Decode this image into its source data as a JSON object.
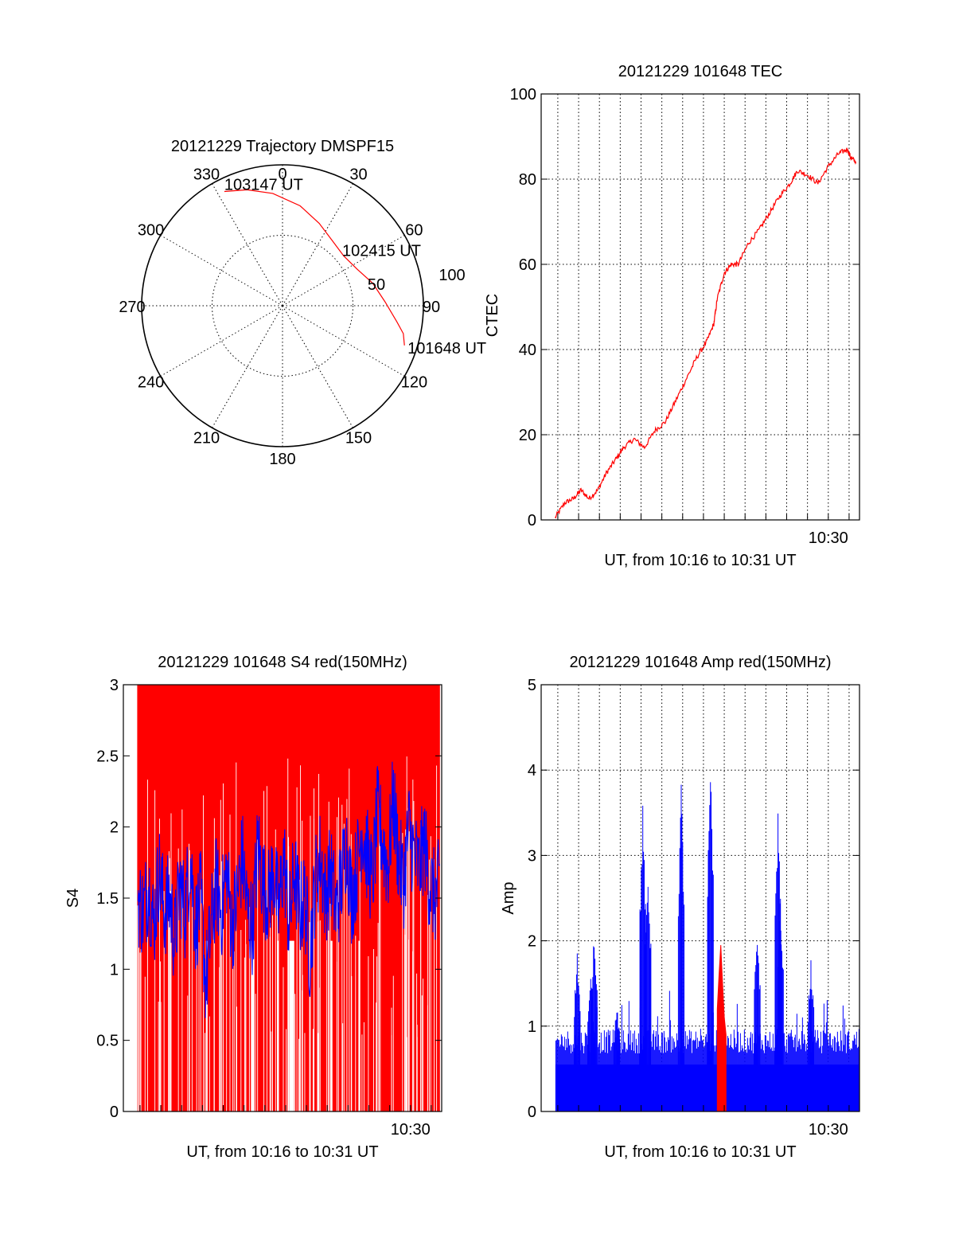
{
  "colors": {
    "red": "#ff0000",
    "blue": "#0000ff",
    "axis": "#000000",
    "grid": "#000000",
    "background": "#ffffff"
  },
  "chart_data": [
    {
      "id": "trajectory",
      "type": "polar",
      "title": "20121229 Trajectory DMSPF15",
      "angle_labels": [
        "0",
        "30",
        "60",
        "90",
        "120",
        "150",
        "180",
        "210",
        "240",
        "270",
        "300",
        "330"
      ],
      "radial_labels": [
        "50",
        "100"
      ],
      "radial_range": [
        0,
        100
      ],
      "grid": true,
      "series": [
        {
          "color": "#ff0000",
          "points": [
            {
              "azimuth": 108,
              "zenith": 91
            },
            {
              "azimuth": 103,
              "zenith": 88
            },
            {
              "azimuth": 98,
              "zenith": 82
            },
            {
              "azimuth": 88,
              "zenith": 73
            },
            {
              "azimuth": 76,
              "zenith": 66
            },
            {
              "azimuth": 64,
              "zenith": 59
            },
            {
              "azimuth": 51,
              "zenith": 56
            },
            {
              "azimuth": 38,
              "zenith": 58
            },
            {
              "azimuth": 24,
              "zenith": 64
            },
            {
              "azimuth": 10,
              "zenith": 72
            },
            {
              "azimuth": -5,
              "zenith": 80
            },
            {
              "azimuth": -17,
              "zenith": 86
            },
            {
              "azimuth": -27,
              "zenith": 91
            }
          ]
        }
      ],
      "annotations": [
        {
          "text": "101648 UT",
          "azimuth": 108,
          "zenith": 91
        },
        {
          "text": "102415 UT",
          "azimuth": 51,
          "zenith": 56
        },
        {
          "text": "103147 UT",
          "azimuth": -27,
          "zenith": 91
        }
      ]
    },
    {
      "id": "tec",
      "type": "line",
      "title": "20121229 101648 TEC",
      "xlabel": "UT, from 10:16 to 10:31 UT",
      "ylabel": "CTEC",
      "xlim": [
        10.27,
        10.525
      ],
      "ylim": [
        0,
        100
      ],
      "yticks": [
        0,
        20,
        40,
        60,
        80,
        100
      ],
      "xtick_labels": [
        {
          "x": 10.5,
          "label": "10:30"
        }
      ],
      "grid": true,
      "series": [
        {
          "color": "#ff0000",
          "x": [
            10.2811,
            10.2889,
            10.2958,
            10.3019,
            10.3083,
            10.3153,
            10.3222,
            10.3292,
            10.3361,
            10.3444,
            10.3528,
            10.3611,
            10.3694,
            10.3778,
            10.3861,
            10.3944,
            10.4028,
            10.4083,
            10.4111,
            10.4167,
            10.4222,
            10.4278,
            10.4361,
            10.4444,
            10.4528,
            10.4611,
            10.4694,
            10.4753,
            10.4833,
            10.4917,
            10.5,
            10.5083,
            10.5153,
            10.5181,
            10.5222
          ],
          "y": [
            0.5,
            4,
            5,
            7,
            5,
            7,
            11,
            14,
            17,
            19,
            17,
            21,
            23,
            28,
            33,
            38,
            42,
            46,
            52,
            58,
            60,
            60,
            65,
            68,
            72,
            76,
            79,
            82,
            81,
            79,
            83,
            86,
            87,
            85,
            84
          ]
        }
      ]
    },
    {
      "id": "s4",
      "type": "line",
      "title": "20121229 101648 S4 red(150MHz)",
      "xlabel": "UT, from 10:16 to 10:31 UT",
      "ylabel": "S4",
      "xlim": [
        10.27,
        10.525
      ],
      "ylim": [
        0,
        3
      ],
      "yticks": [
        0,
        0.5,
        1,
        1.5,
        2,
        2.5,
        3
      ],
      "ytick_labels": [
        "0",
        "0.5",
        "1",
        "1.5",
        "2",
        "2.5",
        "3"
      ],
      "xtick_labels": [
        {
          "x": 10.5,
          "label": "10:30"
        }
      ],
      "grid": false,
      "series": [
        {
          "name": "red",
          "color": "#ff0000",
          "style": "fill-to-top",
          "x_range": [
            10.2811,
            10.5236
          ],
          "gaps": [
            [
              10.3361,
              10.3375
            ],
            [
              10.3722,
              10.375
            ],
            [
              10.3931,
              10.3944
            ],
            [
              10.4028,
              10.4069
            ],
            [
              10.4361,
              10.4375
            ],
            [
              10.4583,
              10.4597
            ]
          ]
        },
        {
          "name": "blue",
          "color": "#0000ff",
          "x": [
            10.2817,
            10.2861,
            10.2903,
            10.2944,
            10.2986,
            10.3028,
            10.3069,
            10.3111,
            10.3153,
            10.3194,
            10.3236,
            10.3278,
            10.3319,
            10.3361,
            10.3403,
            10.3444,
            10.3486,
            10.3528,
            10.3569,
            10.3611,
            10.3653,
            10.3694,
            10.3736,
            10.3778,
            10.3819,
            10.3861,
            10.3903,
            10.3944,
            10.3986,
            10.4028,
            10.4069,
            10.4111,
            10.4153,
            10.4194,
            10.4236,
            10.4278,
            10.4319,
            10.4361,
            10.4403,
            10.4444,
            10.4486,
            10.4528,
            10.4569,
            10.4611,
            10.4653,
            10.4694,
            10.4736,
            10.4778,
            10.4819,
            10.4861,
            10.4903,
            10.4944,
            10.4986,
            10.5028,
            10.5069,
            10.5111,
            10.5153,
            10.5194,
            10.5236
          ],
          "y": [
            1.5,
            1.4,
            1.6,
            1.3,
            1.7,
            1.4,
            1.5,
            1.2,
            1.6,
            1.4,
            1.8,
            1.3,
            1.5,
            0.9,
            1.3,
            1.6,
            1.4,
            1.7,
            1.3,
            1.5,
            1.8,
            1.4,
            1.3,
            1.9,
            1.6,
            1.5,
            1.7,
            1.4,
            1.8,
            1.3,
            1.7,
            1.4,
            1.5,
            1.1,
            1.6,
            1.8,
            1.5,
            1.7,
            1.4,
            1.6,
            1.9,
            1.5,
            1.7,
            2.0,
            1.8,
            1.6,
            2.1,
            1.9,
            1.7,
            2.2,
            1.8,
            1.6,
            2.0,
            1.8,
            1.7,
            1.9,
            1.6,
            1.5,
            1.6
          ]
        }
      ]
    },
    {
      "id": "amp",
      "type": "line",
      "title": "20121229 101648 Amp red(150MHz)",
      "xlabel": "UT, from 10:16 to 10:31 UT",
      "ylabel": "Amp",
      "xlim": [
        10.27,
        10.525
      ],
      "ylim": [
        0,
        5
      ],
      "yticks": [
        0,
        1,
        2,
        3,
        4,
        5
      ],
      "xtick_labels": [
        {
          "x": 10.5,
          "label": "10:30"
        }
      ],
      "grid": true,
      "series": [
        {
          "name": "blue",
          "color": "#0000ff",
          "x_range": [
            10.2817,
            10.525
          ],
          "baseline": 0.8,
          "peaks": [
            {
              "x": 10.2989,
              "y": 1.9
            },
            {
              "x": 10.3097,
              "y": 1.6
            },
            {
              "x": 10.3125,
              "y": 2.2
            },
            {
              "x": 10.3514,
              "y": 3.6
            },
            {
              "x": 10.3556,
              "y": 2.9
            },
            {
              "x": 10.3822,
              "y": 3.9
            },
            {
              "x": 10.4056,
              "y": 4.1
            },
            {
              "x": 10.4431,
              "y": 2.2
            },
            {
              "x": 10.4597,
              "y": 3.6
            },
            {
              "x": 10.4617,
              "y": 2.5
            },
            {
              "x": 10.4861,
              "y": 1.8
            },
            {
              "x": 10.3306,
              "y": 1.3
            }
          ]
        },
        {
          "name": "red",
          "color": "#ff0000",
          "x": [
            10.4111,
            10.4125,
            10.4139,
            10.4153,
            10.4167,
            10.4181
          ],
          "y": [
            1.2,
            1.6,
            1.95,
            1.5,
            1.1,
            0.9
          ]
        }
      ]
    }
  ]
}
